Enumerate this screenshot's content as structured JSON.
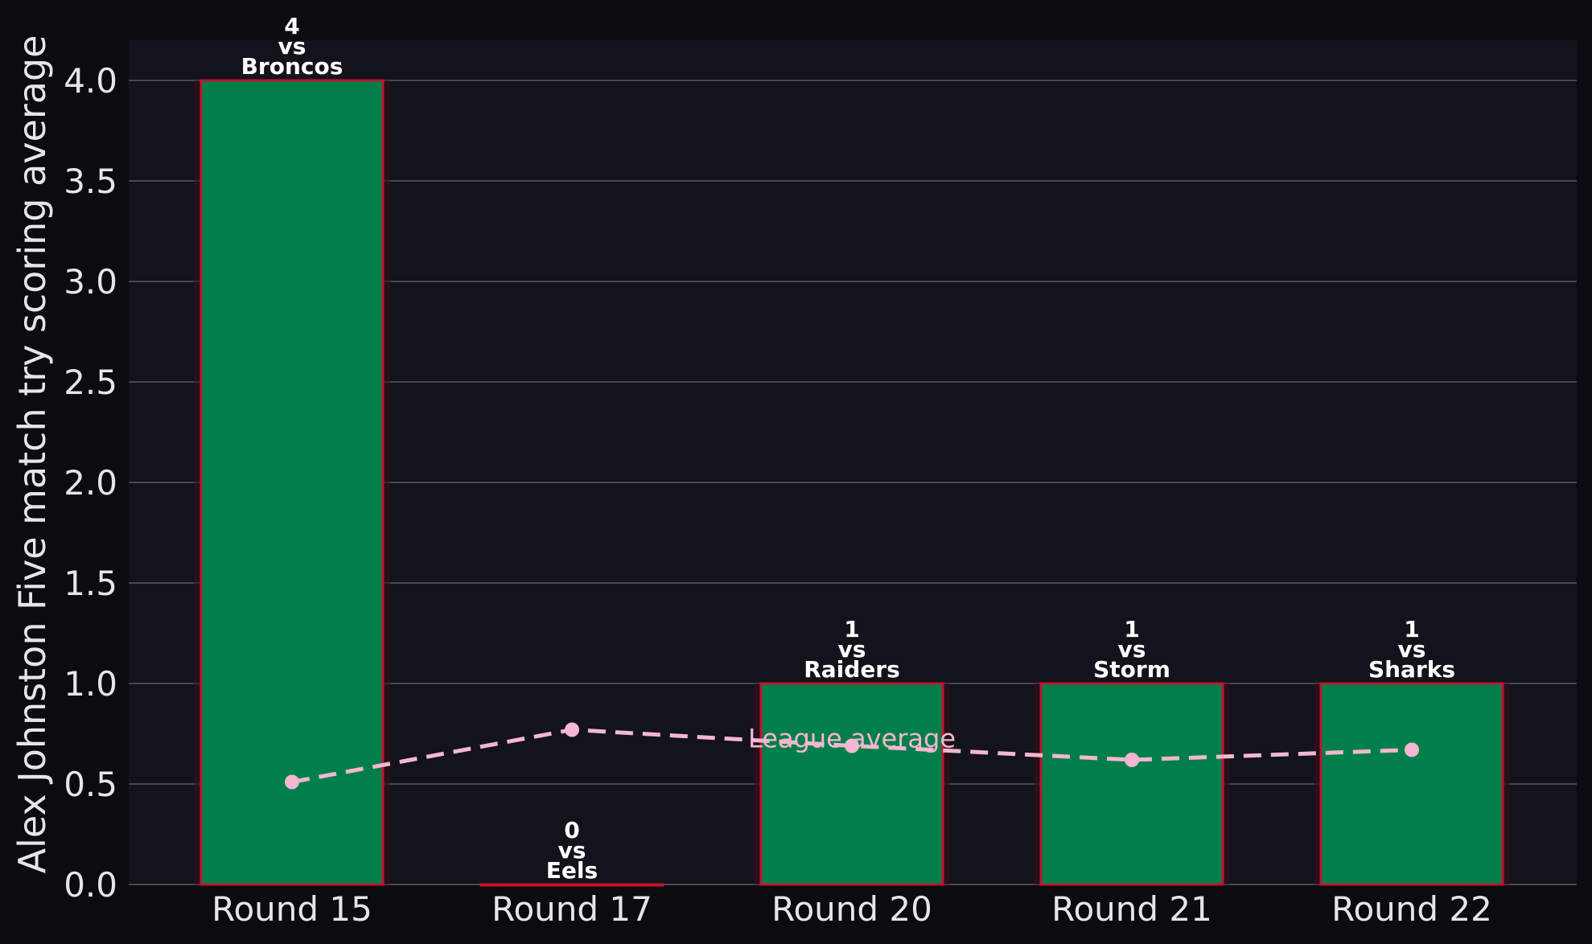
{
  "chart_data": {
    "type": "bar",
    "categories": [
      "Round 15",
      "Round 17",
      "Round 20",
      "Round 21",
      "Round 22"
    ],
    "values": [
      4,
      0,
      1,
      1,
      1
    ],
    "bar_labels": [
      [
        "4",
        "vs",
        "Broncos"
      ],
      [
        "0",
        "vs",
        "Eels"
      ],
      [
        "1",
        "vs",
        "Raiders"
      ],
      [
        "1",
        "vs",
        "Storm"
      ],
      [
        "1",
        "vs",
        "Sharks"
      ]
    ],
    "line_series": {
      "style": "dashed",
      "values": [
        0.51,
        0.77,
        0.69,
        0.62,
        0.67
      ],
      "annotation": "League average"
    },
    "ylabel": "Alex Johnston Five match try scoring average",
    "xlabel": "",
    "ylim": [
      0,
      4.2
    ],
    "yticks": [
      0.0,
      0.5,
      1.0,
      1.5,
      2.0,
      2.5,
      3.0,
      3.5,
      4.0
    ],
    "grid": "horizontal",
    "colors": {
      "background": "#0b0b10",
      "plot_background": "#12131b",
      "bar_fill": "#007f4a",
      "bar_edge": "#c4122f",
      "line": "#f4b6d0",
      "grid": "#5a5a60",
      "text": "#e6e6e6"
    }
  }
}
